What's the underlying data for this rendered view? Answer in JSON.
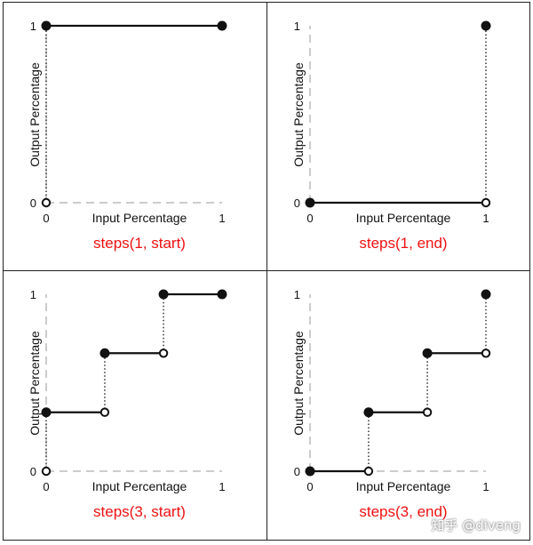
{
  "chart_data": [
    {
      "type": "line",
      "title": "steps(1, start)",
      "xlabel": "Input Percentage",
      "ylabel": "Output Percentage",
      "x_ticks": [
        "0",
        "1"
      ],
      "y_ticks": [
        "0",
        "1"
      ],
      "xlim": [
        0,
        1
      ],
      "ylim": [
        0,
        1
      ],
      "segments": [
        {
          "x": [
            0,
            1
          ],
          "y": [
            1,
            1
          ]
        }
      ],
      "risers": [
        {
          "x": 0,
          "y": [
            0,
            1
          ]
        }
      ],
      "filled_points": [
        {
          "x": 0,
          "y": 1
        },
        {
          "x": 1,
          "y": 1
        }
      ],
      "open_points": [
        {
          "x": 0,
          "y": 0
        }
      ],
      "title_color": "#ee1111"
    },
    {
      "type": "line",
      "title": "steps(1, end)",
      "xlabel": "Input Percentage",
      "ylabel": "Output Percentage",
      "x_ticks": [
        "0",
        "1"
      ],
      "y_ticks": [
        "0",
        "1"
      ],
      "xlim": [
        0,
        1
      ],
      "ylim": [
        0,
        1
      ],
      "segments": [
        {
          "x": [
            0,
            1
          ],
          "y": [
            0,
            0
          ]
        }
      ],
      "risers": [
        {
          "x": 1,
          "y": [
            0,
            1
          ]
        }
      ],
      "filled_points": [
        {
          "x": 0,
          "y": 0
        },
        {
          "x": 1,
          "y": 1
        }
      ],
      "open_points": [
        {
          "x": 1,
          "y": 0
        }
      ],
      "title_color": "#ee1111"
    },
    {
      "type": "line",
      "title": "steps(3, start)",
      "xlabel": "Input Percentage",
      "ylabel": "Output Percentage",
      "x_ticks": [
        "0",
        "1"
      ],
      "y_ticks": [
        "0",
        "1"
      ],
      "xlim": [
        0,
        1
      ],
      "ylim": [
        0,
        1
      ],
      "segments": [
        {
          "x": [
            0,
            0.333
          ],
          "y": [
            0.333,
            0.333
          ]
        },
        {
          "x": [
            0.333,
            0.667
          ],
          "y": [
            0.667,
            0.667
          ]
        },
        {
          "x": [
            0.667,
            1
          ],
          "y": [
            1,
            1
          ]
        }
      ],
      "risers": [
        {
          "x": 0,
          "y": [
            0,
            0.333
          ]
        },
        {
          "x": 0.333,
          "y": [
            0.333,
            0.667
          ]
        },
        {
          "x": 0.667,
          "y": [
            0.667,
            1
          ]
        }
      ],
      "filled_points": [
        {
          "x": 0,
          "y": 0.333
        },
        {
          "x": 0.333,
          "y": 0.667
        },
        {
          "x": 0.667,
          "y": 1
        },
        {
          "x": 1,
          "y": 1
        }
      ],
      "open_points": [
        {
          "x": 0,
          "y": 0
        },
        {
          "x": 0.333,
          "y": 0.333
        },
        {
          "x": 0.667,
          "y": 0.667
        }
      ],
      "title_color": "#ee1111"
    },
    {
      "type": "line",
      "title": "steps(3, end)",
      "xlabel": "Input Percentage",
      "ylabel": "Output Percentage",
      "x_ticks": [
        "0",
        "1"
      ],
      "y_ticks": [
        "0",
        "1"
      ],
      "xlim": [
        0,
        1
      ],
      "ylim": [
        0,
        1
      ],
      "segments": [
        {
          "x": [
            0,
            0.333
          ],
          "y": [
            0,
            0
          ]
        },
        {
          "x": [
            0.333,
            0.667
          ],
          "y": [
            0.333,
            0.333
          ]
        },
        {
          "x": [
            0.667,
            1
          ],
          "y": [
            0.667,
            0.667
          ]
        }
      ],
      "risers": [
        {
          "x": 0.333,
          "y": [
            0,
            0.333
          ]
        },
        {
          "x": 0.667,
          "y": [
            0.333,
            0.667
          ]
        },
        {
          "x": 1,
          "y": [
            0.667,
            1
          ]
        }
      ],
      "filled_points": [
        {
          "x": 0,
          "y": 0
        },
        {
          "x": 0.333,
          "y": 0.333
        },
        {
          "x": 0.667,
          "y": 0.667
        },
        {
          "x": 1,
          "y": 1
        }
      ],
      "open_points": [
        {
          "x": 0.333,
          "y": 0
        },
        {
          "x": 0.667,
          "y": 0.333
        },
        {
          "x": 1,
          "y": 0.667
        }
      ],
      "title_color": "#ee1111"
    }
  ],
  "watermark": "知乎 @diveng"
}
